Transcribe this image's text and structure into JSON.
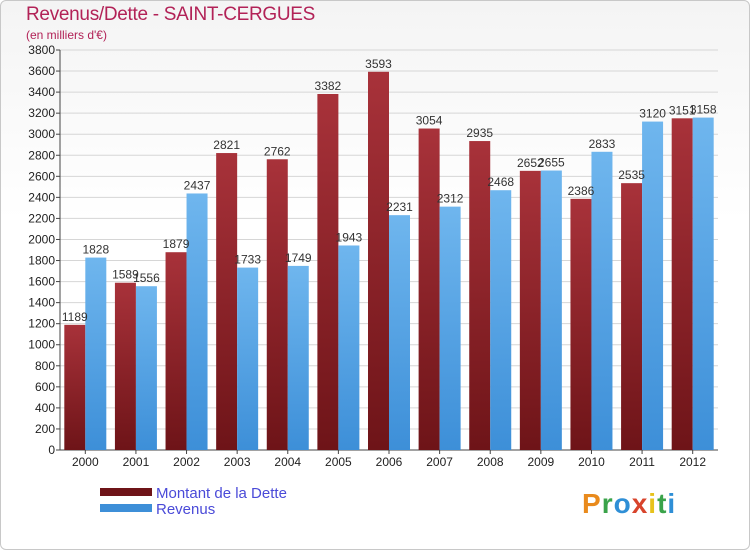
{
  "header": {
    "title": "Revenus/Dette - SAINT-CERGUES",
    "subtitle": "(en milliers d'€)"
  },
  "logo": {
    "text": "Proxiti"
  },
  "colors": {
    "debt": "#6e1418",
    "debt_light": "#a8323a",
    "revenue": "#3d8fd8",
    "revenue_light": "#6fb6ee"
  },
  "chart_data": {
    "type": "bar",
    "categories": [
      "2000",
      "2001",
      "2002",
      "2003",
      "2004",
      "2005",
      "2006",
      "2007",
      "2008",
      "2009",
      "2010",
      "2011",
      "2012"
    ],
    "series": [
      {
        "name": "Montant de la Dette",
        "values": [
          1189,
          1589,
          1879,
          2821,
          2762,
          3382,
          3593,
          3054,
          2935,
          2652,
          2386,
          2535,
          3151
        ]
      },
      {
        "name": "Revenus",
        "values": [
          1828,
          1556,
          2437,
          1733,
          1749,
          1943,
          2231,
          2312,
          2468,
          2655,
          2833,
          3120,
          3158
        ]
      }
    ],
    "ylim": [
      0,
      3800
    ],
    "yticks": [
      0,
      200,
      400,
      600,
      800,
      1000,
      1200,
      1400,
      1600,
      1800,
      2000,
      2200,
      2400,
      2600,
      2800,
      3000,
      3200,
      3400,
      3600,
      3800
    ],
    "grid": true,
    "legend": "bottom-left"
  }
}
